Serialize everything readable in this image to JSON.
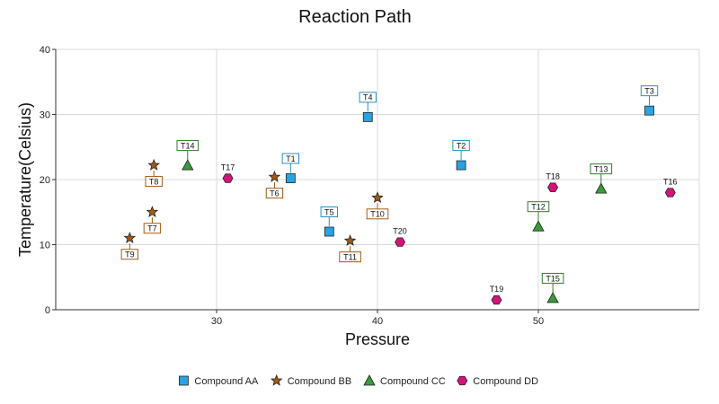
{
  "chart_data": {
    "type": "scatter",
    "title": "Reaction Path",
    "xlabel": "Pressure",
    "ylabel": "Temperature(Celsius)",
    "xlim": [
      20,
      60
    ],
    "ylim": [
      0,
      40
    ],
    "xticks": [
      30,
      40,
      50
    ],
    "yticks": [
      0,
      10,
      20,
      30,
      40
    ],
    "grid": true,
    "legend": "bottom",
    "series": [
      {
        "name": "Compound AA",
        "marker": "square",
        "color": "#2aa3e0",
        "label_style": "boxed",
        "label_color": "#2a8fc4",
        "points": [
          {
            "label": "T1",
            "x": 34.6,
            "y": 20.2
          },
          {
            "label": "T2",
            "x": 45.2,
            "y": 22.2
          },
          {
            "label": "T3",
            "x": 56.9,
            "y": 30.6
          },
          {
            "label": "T4",
            "x": 39.4,
            "y": 29.6
          },
          {
            "label": "T5",
            "x": 37.0,
            "y": 12.0
          }
        ]
      },
      {
        "name": "Compound BB",
        "marker": "star",
        "color": "#a35a14",
        "label_style": "boxed",
        "label_color": "#a35a14",
        "points": [
          {
            "label": "T6",
            "x": 33.6,
            "y": 20.4,
            "label_pos": "below"
          },
          {
            "label": "T7",
            "x": 26.0,
            "y": 15.0,
            "label_pos": "below"
          },
          {
            "label": "T8",
            "x": 26.1,
            "y": 22.2,
            "label_pos": "below"
          },
          {
            "label": "T9",
            "x": 24.6,
            "y": 11.0,
            "label_pos": "below"
          },
          {
            "label": "T10",
            "x": 40.0,
            "y": 17.2,
            "label_pos": "below"
          },
          {
            "label": "T11",
            "x": 38.3,
            "y": 10.6,
            "label_pos": "below"
          }
        ]
      },
      {
        "name": "Compound CC",
        "marker": "triangle",
        "color": "#3a9a3a",
        "label_style": "boxed",
        "label_color": "#2f7d2f",
        "points": [
          {
            "label": "T12",
            "x": 50.0,
            "y": 12.8
          },
          {
            "label": "T13",
            "x": 53.9,
            "y": 18.6
          },
          {
            "label": "T14",
            "x": 28.2,
            "y": 22.2
          },
          {
            "label": "T15",
            "x": 50.9,
            "y": 1.8
          }
        ]
      },
      {
        "name": "Compound DD",
        "marker": "hexagon",
        "color": "#d4147a",
        "label_style": "plain",
        "label_color": "#111111",
        "points": [
          {
            "label": "T16",
            "x": 58.2,
            "y": 18.0
          },
          {
            "label": "T17",
            "x": 30.7,
            "y": 20.2
          },
          {
            "label": "T18",
            "x": 50.9,
            "y": 18.8
          },
          {
            "label": "T19",
            "x": 47.4,
            "y": 1.5
          },
          {
            "label": "T20",
            "x": 41.4,
            "y": 10.4
          }
        ]
      }
    ]
  }
}
